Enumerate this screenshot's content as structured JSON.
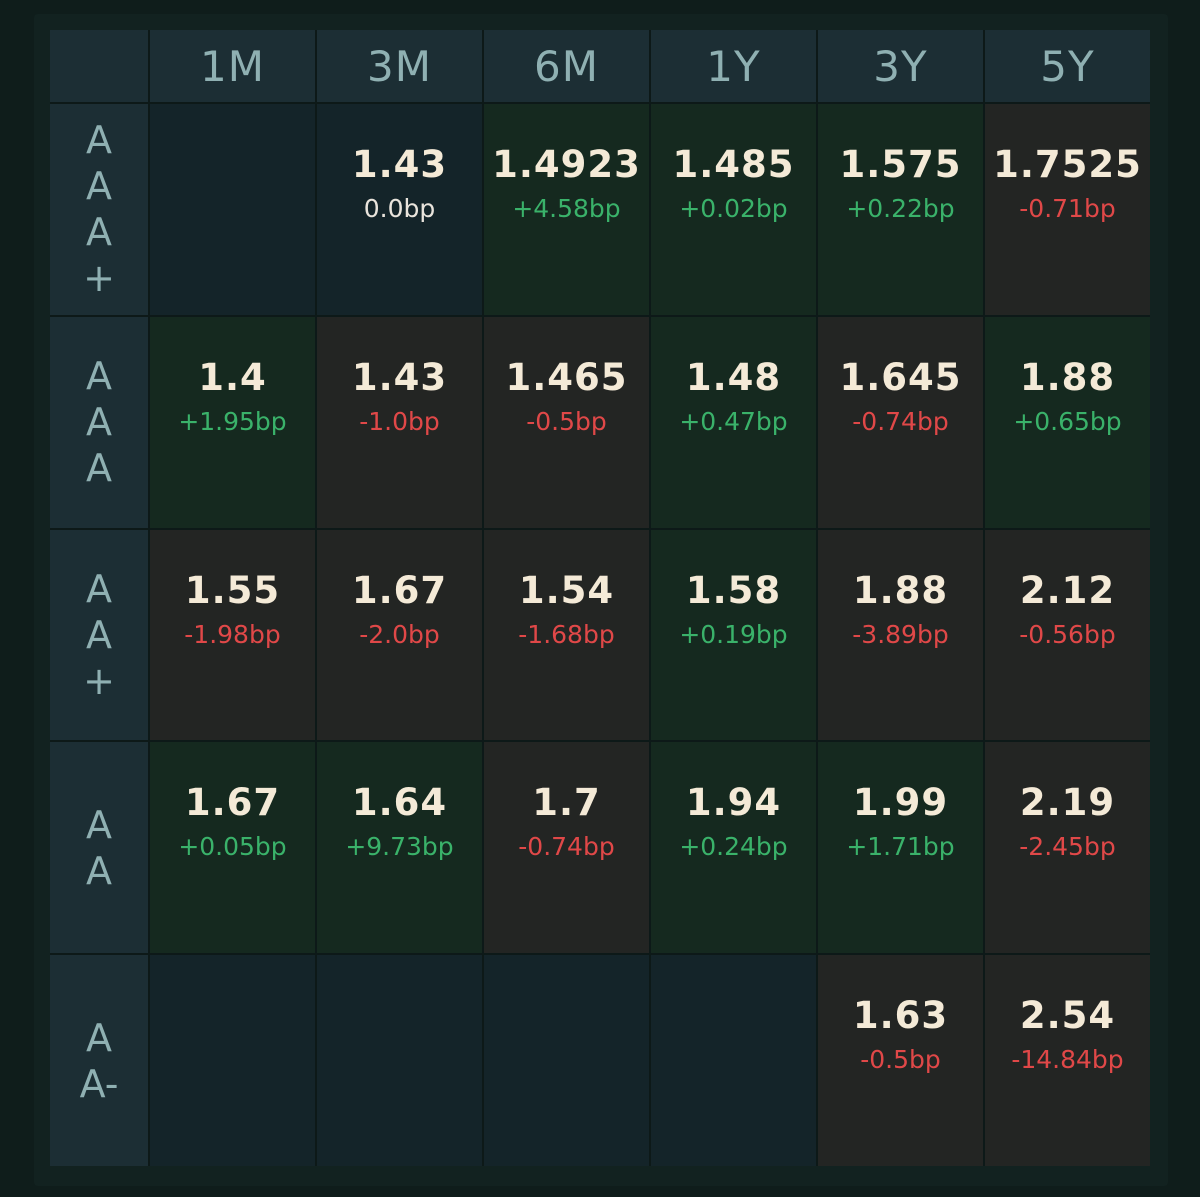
{
  "colors": {
    "positive": "#3ab26a",
    "negative": "#e04848",
    "neutral": "#e9e4dc",
    "value_text": "#f4ead7",
    "header_text": "#8fb0b2"
  },
  "columns": [
    "1M",
    "3M",
    "6M",
    "1Y",
    "3Y",
    "5Y"
  ],
  "rows": [
    {
      "label": "AAA+",
      "cells": [
        null,
        {
          "value": "1.43",
          "change": "0.0bp",
          "trend": "flat"
        },
        {
          "value": "1.4923",
          "change": "+4.58bp",
          "trend": "up"
        },
        {
          "value": "1.485",
          "change": "+0.02bp",
          "trend": "up"
        },
        {
          "value": "1.575",
          "change": "+0.22bp",
          "trend": "up"
        },
        {
          "value": "1.7525",
          "change": "-0.71bp",
          "trend": "down"
        }
      ]
    },
    {
      "label": "AAA",
      "cells": [
        {
          "value": "1.4",
          "change": "+1.95bp",
          "trend": "up"
        },
        {
          "value": "1.43",
          "change": "-1.0bp",
          "trend": "down"
        },
        {
          "value": "1.465",
          "change": "-0.5bp",
          "trend": "down"
        },
        {
          "value": "1.48",
          "change": "+0.47bp",
          "trend": "up"
        },
        {
          "value": "1.645",
          "change": "-0.74bp",
          "trend": "down"
        },
        {
          "value": "1.88",
          "change": "+0.65bp",
          "trend": "up"
        }
      ]
    },
    {
      "label": "AA+",
      "cells": [
        {
          "value": "1.55",
          "change": "-1.98bp",
          "trend": "down"
        },
        {
          "value": "1.67",
          "change": "-2.0bp",
          "trend": "down"
        },
        {
          "value": "1.54",
          "change": "-1.68bp",
          "trend": "down"
        },
        {
          "value": "1.58",
          "change": "+0.19bp",
          "trend": "up"
        },
        {
          "value": "1.88",
          "change": "-3.89bp",
          "trend": "down"
        },
        {
          "value": "2.12",
          "change": "-0.56bp",
          "trend": "down"
        }
      ]
    },
    {
      "label": "AA",
      "cells": [
        {
          "value": "1.67",
          "change": "+0.05bp",
          "trend": "up"
        },
        {
          "value": "1.64",
          "change": "+9.73bp",
          "trend": "up"
        },
        {
          "value": "1.7",
          "change": "-0.74bp",
          "trend": "down"
        },
        {
          "value": "1.94",
          "change": "+0.24bp",
          "trend": "up"
        },
        {
          "value": "1.99",
          "change": "+1.71bp",
          "trend": "up"
        },
        {
          "value": "2.19",
          "change": "-2.45bp",
          "trend": "down"
        }
      ]
    },
    {
      "label": "AA-",
      "cells": [
        null,
        null,
        null,
        null,
        {
          "value": "1.63",
          "change": "-0.5bp",
          "trend": "down"
        },
        {
          "value": "2.54",
          "change": "-14.84bp",
          "trend": "down"
        }
      ]
    }
  ]
}
